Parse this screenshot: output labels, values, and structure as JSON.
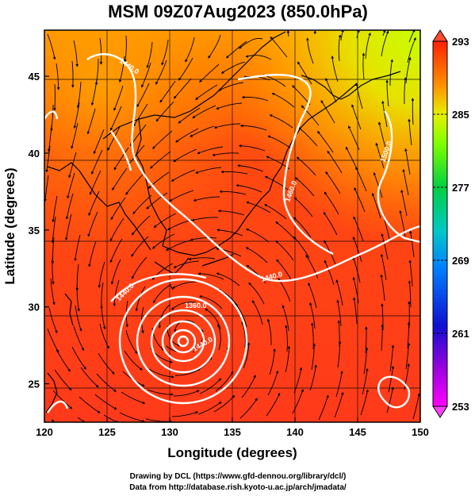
{
  "title": "MSM 09Z07Aug2023 (850.0hPa)",
  "x_axis": {
    "label": "Longitude (degrees)",
    "min": 120,
    "max": 150,
    "ticks": [
      "120",
      "125",
      "130",
      "135",
      "140",
      "145",
      "150"
    ]
  },
  "y_axis": {
    "label": "Latitude  (degrees)",
    "min": 22.5,
    "max": 48,
    "ticks": [
      "25",
      "30",
      "35",
      "40",
      "45"
    ]
  },
  "colorbar": {
    "min": 253,
    "max": 293,
    "ticks": [
      "293",
      "285",
      "277",
      "269",
      "261",
      "253"
    ]
  },
  "contours": {
    "labels": [
      "1440.0",
      "1440.0",
      "1460.0",
      "1500.0",
      "1440.0",
      "1360.0",
      "1440.0"
    ],
    "color": "#ffffff"
  },
  "typhoon_center": {
    "lon": 131.2,
    "lat": 28.3
  },
  "credits": {
    "line1": "Drawing by DCL (https://www.gfd-dennou.org/library/dcl/)",
    "line2": "Data from http://database.rish.kyoto-u.ac.jp/arch/jmadata/"
  },
  "colors": {
    "warm": "#ff3a1a",
    "hot": "#ff2000",
    "mid": "#ff8a00",
    "cool": "#d8f000",
    "cold": "#80ff00"
  }
}
